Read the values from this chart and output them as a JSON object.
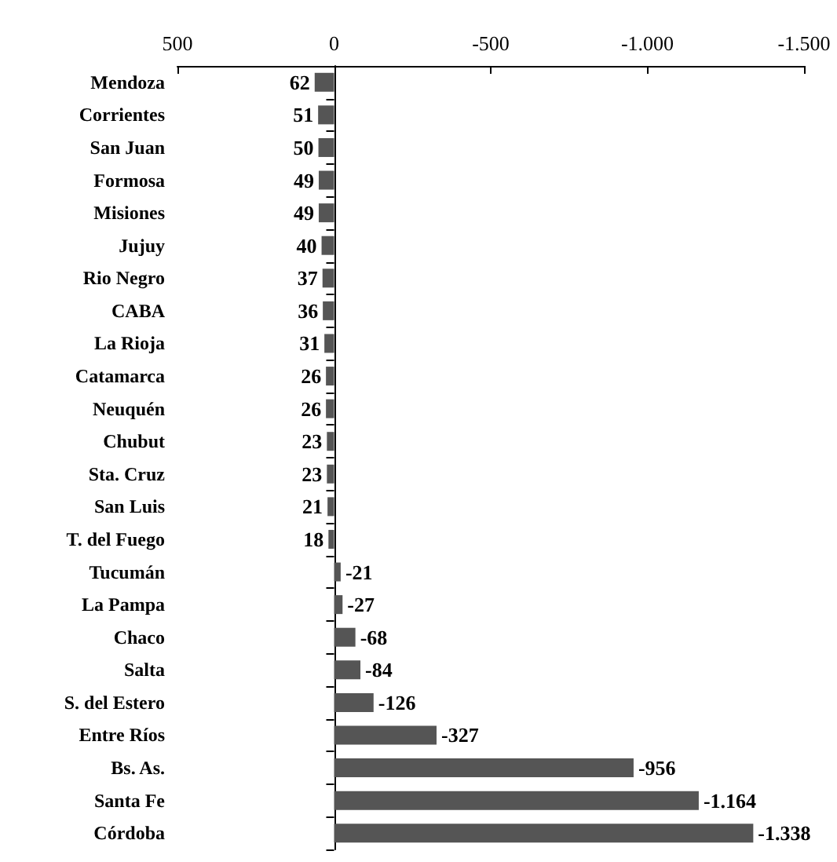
{
  "chart_data": {
    "type": "bar",
    "orientation": "horizontal",
    "categories": [
      "Mendoza",
      "Corrientes",
      "San Juan",
      "Formosa",
      "Misiones",
      "Jujuy",
      "Rio Negro",
      "CABA",
      "La Rioja",
      "Catamarca",
      "Neuquén",
      "Chubut",
      "Sta. Cruz",
      "San Luis",
      "T. del Fuego",
      "Tucumán",
      "La Pampa",
      "Chaco",
      "Salta",
      "S. del Estero",
      "Entre Ríos",
      "Bs. As.",
      "Santa Fe",
      "Córdoba"
    ],
    "values": [
      62,
      51,
      50,
      49,
      49,
      40,
      37,
      36,
      31,
      26,
      26,
      23,
      23,
      21,
      18,
      -21,
      -27,
      -68,
      -84,
      -126,
      -327,
      -956,
      -1164,
      -1338
    ],
    "value_labels": [
      "62",
      "51",
      "50",
      "49",
      "49",
      "40",
      "37",
      "36",
      "31",
      "26",
      "26",
      "23",
      "23",
      "21",
      "18",
      "-21",
      "-27",
      "-68",
      "-84",
      "-126",
      "-327",
      "-956",
      "-1.164",
      "-1.338"
    ],
    "color": "#555555",
    "xlim": [
      500,
      -1500
    ],
    "xticks": [
      500,
      0,
      -500,
      {
        "value": -1000,
        "label": "-1.000"
      },
      {
        "value": -1500,
        "label": "-1.500"
      }
    ]
  }
}
